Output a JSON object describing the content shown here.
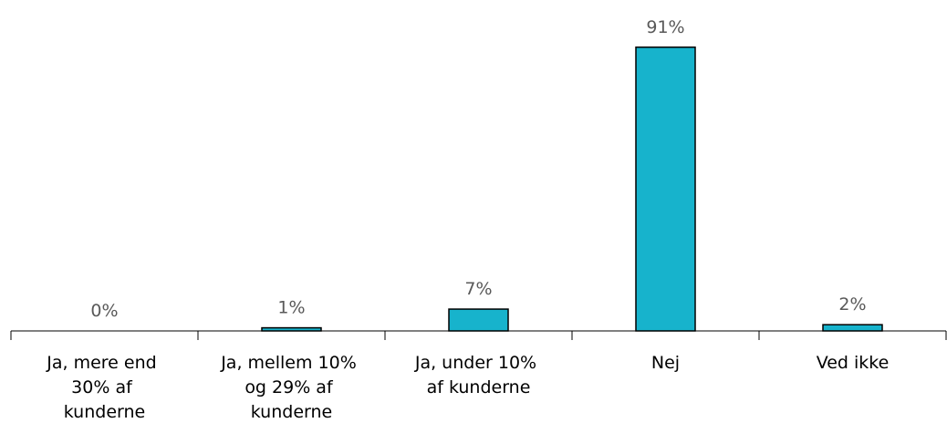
{
  "chart_data": {
    "type": "bar",
    "categories": [
      "Ja, mere end 30% af kunderne",
      "Ja, mellem 10% og 29% af kunderne",
      "Ja, under 10% af kunderne",
      "Nej",
      "Ved ikke"
    ],
    "values": [
      0,
      1,
      7,
      91,
      2
    ],
    "value_labels": [
      "0%",
      "1%",
      "7%",
      "91%",
      "2%"
    ],
    "color": "#17b3cc"
  }
}
